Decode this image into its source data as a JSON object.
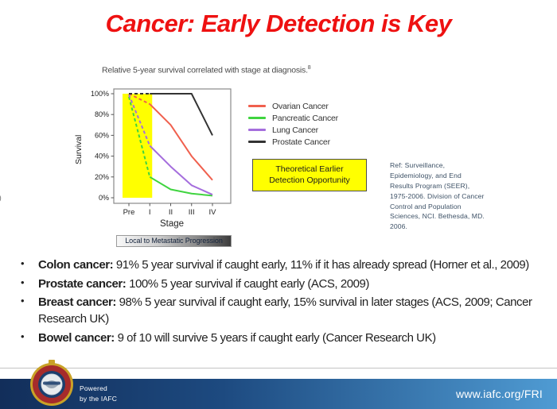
{
  "slide": {
    "title": "Cancer: Early Detection is Key",
    "title_color": "#ee1111",
    "page_artifact": "0"
  },
  "figure": {
    "caption": "Relative 5-year survival correlated with stage at diagnosis.",
    "caption_superscript": "8",
    "annotation_line1": "Theoretical Earlier",
    "annotation_line2": "Detection Opportunity",
    "annotation_bg": "#ffff00",
    "reference": "Ref: Surveillance, Epidemiology, and End Results Program (SEER), 1975-2006. Division of Cancer Control and Population Sciences, NCI. Bethesda, MD. 2006.",
    "reference_color": "#3d5166",
    "progression_bar_label": "Local to Metastatic Progression"
  },
  "chart_data": {
    "type": "line",
    "title": "Relative 5-year survival correlated with stage at diagnosis.",
    "xlabel": "Stage",
    "ylabel": "Survival",
    "categories": [
      "Pre",
      "I",
      "II",
      "III",
      "IV"
    ],
    "yticks": [
      0,
      20,
      40,
      60,
      80,
      100
    ],
    "ylim": [
      0,
      100
    ],
    "ytick_suffix": "%",
    "series": [
      {
        "name": "Ovarian Cancer",
        "color": "#f0604e",
        "values": [
          100,
          90,
          70,
          40,
          17
        ]
      },
      {
        "name": "Pancreatic Cancer",
        "color": "#3fd climbs",
        "values": [
          97,
          20,
          8,
          4,
          2
        ]
      },
      {
        "name": "Lung Cancer",
        "color": "#a56edd",
        "values": [
          99,
          50,
          30,
          12,
          3
        ]
      },
      {
        "name": "Prostate Cancer",
        "color": "#333333",
        "values": [
          100,
          100,
          100,
          100,
          60
        ]
      }
    ],
    "dashed_between_first_two_categories": true,
    "highlight_band": {
      "from": "Pre",
      "to": "I",
      "color": "#ffff00"
    },
    "legend_position": "right",
    "grid": false
  },
  "bullets": [
    {
      "lead": "Colon cancer:",
      "text": " 91% 5 year survival if caught early, 11% if it has already spread (Horner et al., 2009)"
    },
    {
      "lead": "Prostate cancer:",
      "text": " 100% 5 year survival if caught early (ACS, 2009)"
    },
    {
      "lead": "Breast cancer:",
      "text": " 98% 5 year survival if caught early, 15% survival in later stages (ACS, 2009; Cancer Research UK)"
    },
    {
      "lead": "Bowel cancer:",
      "text": " 9 of 10 will survive 5 years if caught early (Cancer Research UK)"
    }
  ],
  "footer": {
    "powered_line1": "Powered",
    "powered_line2": "by the IAFC",
    "url": "www.iafc.org/FRI",
    "logo": "iafc-fire-rescue-emblem",
    "band_gradient_left": "#122e5a",
    "band_gradient_right": "#4f9bd3"
  }
}
